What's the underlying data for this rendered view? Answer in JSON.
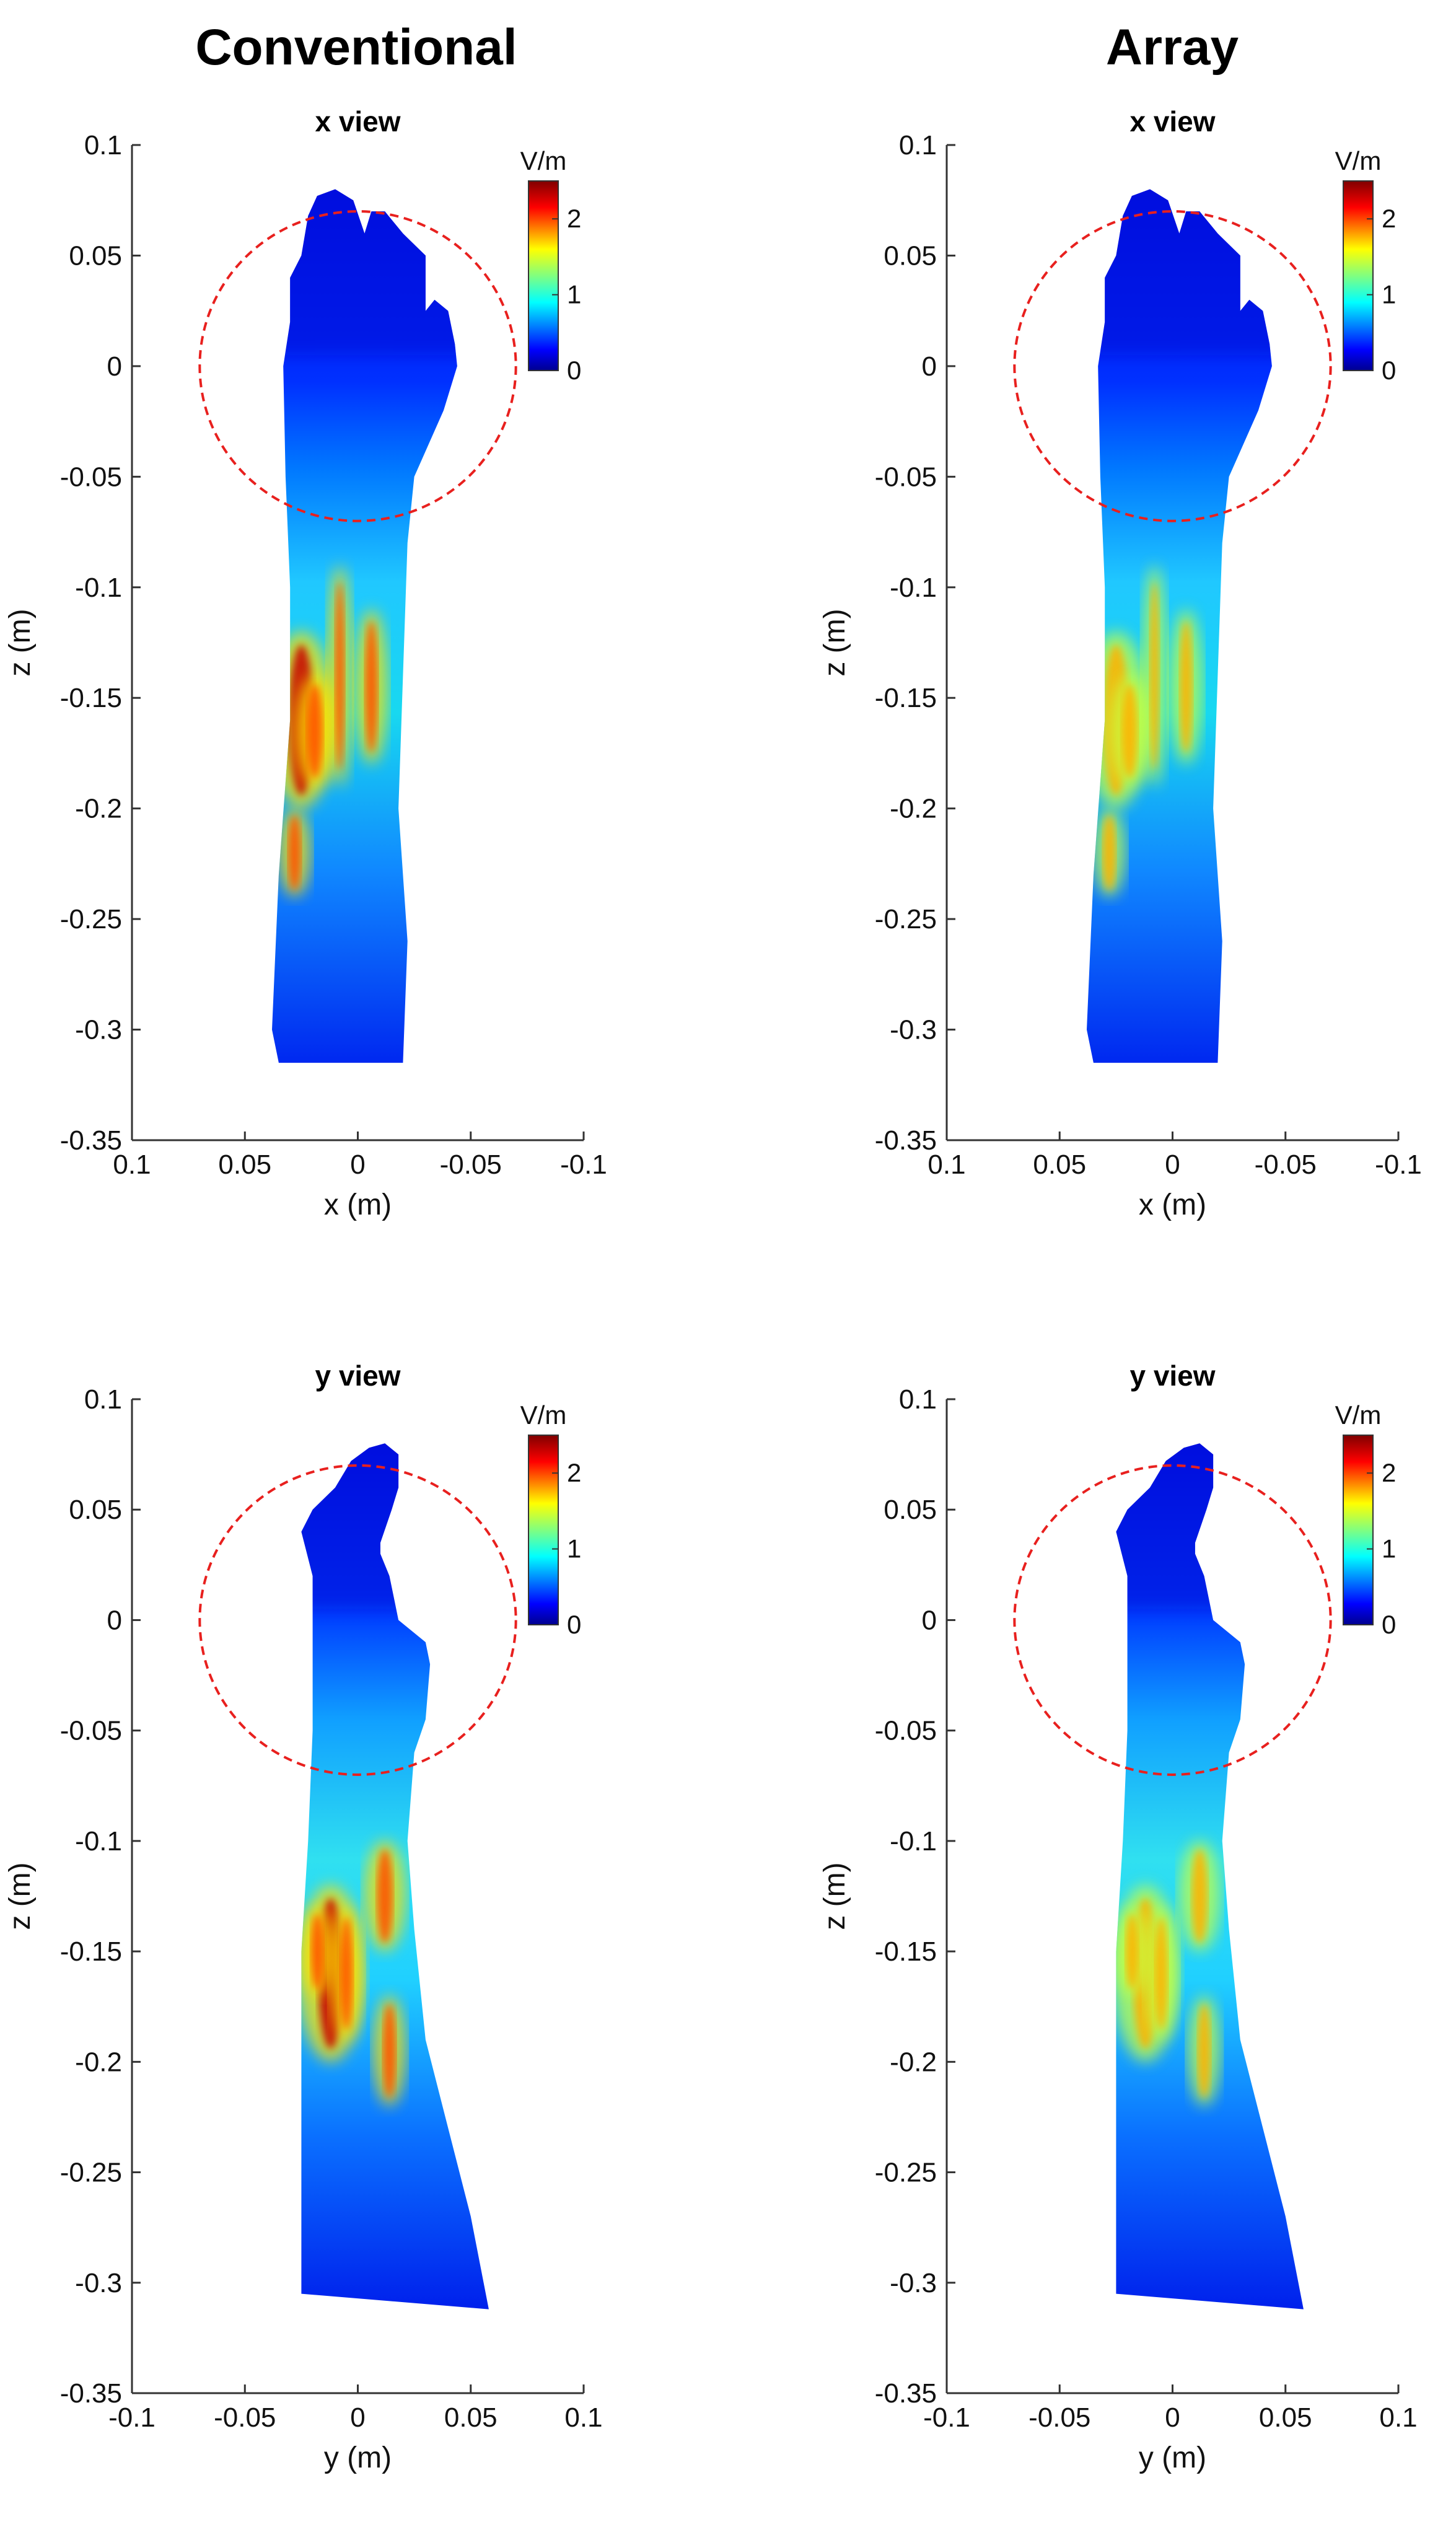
{
  "figure": {
    "column_titles": [
      "Conventional",
      "Array"
    ]
  },
  "colors": {
    "circle": "#e8201e",
    "colormap": [
      "#00008f",
      "#0000ff",
      "#0080ff",
      "#00ffff",
      "#80ff80",
      "#ffff00",
      "#ff8000",
      "#ff0000",
      "#800000"
    ]
  },
  "chart_data": [
    {
      "type": "heatmap",
      "column": "Conventional",
      "title": "x view",
      "xlabel": "x (m)",
      "ylabel": "z (m)",
      "xlim": [
        0.1,
        -0.1
      ],
      "x_reversed": true,
      "ylim": [
        -0.35,
        0.1
      ],
      "xticks": [
        0.1,
        0.05,
        0,
        -0.05,
        -0.1
      ],
      "xtick_labels": [
        "0.1",
        "0.05",
        "0",
        "-0.05",
        "-0.1"
      ],
      "yticks": [
        0.1,
        0.05,
        0,
        -0.05,
        -0.1,
        -0.15,
        -0.2,
        -0.25,
        -0.3,
        -0.35
      ],
      "ytick_labels": [
        "0.1",
        "0.05",
        "0",
        "-0.05",
        "-0.1",
        "-0.15",
        "-0.2",
        "-0.25",
        "-0.3",
        "-0.35"
      ],
      "colorbar": {
        "label": "V/m",
        "range": [
          0,
          2.5
        ],
        "ticks": [
          0,
          1,
          2
        ],
        "tick_labels": [
          "0",
          "1",
          "2"
        ],
        "colormap": "jet"
      },
      "annotation_circle": {
        "center": [
          0,
          0
        ],
        "radius": 0.07,
        "style": "dashed",
        "color": "red"
      },
      "field_peak": 2.4,
      "hotspot_z_range": [
        -0.2,
        -0.1
      ]
    },
    {
      "type": "heatmap",
      "column": "Array",
      "title": "x view",
      "xlabel": "x (m)",
      "ylabel": "z (m)",
      "xlim": [
        0.1,
        -0.1
      ],
      "x_reversed": true,
      "ylim": [
        -0.35,
        0.1
      ],
      "xticks": [
        0.1,
        0.05,
        0,
        -0.05,
        -0.1
      ],
      "xtick_labels": [
        "0.1",
        "0.05",
        "0",
        "-0.05",
        "-0.1"
      ],
      "yticks": [
        0.1,
        0.05,
        0,
        -0.05,
        -0.1,
        -0.15,
        -0.2,
        -0.25,
        -0.3,
        -0.35
      ],
      "ytick_labels": [
        "0.1",
        "0.05",
        "0",
        "-0.05",
        "-0.1",
        "-0.15",
        "-0.2",
        "-0.25",
        "-0.3",
        "-0.35"
      ],
      "colorbar": {
        "label": "V/m",
        "range": [
          0,
          2.5
        ],
        "ticks": [
          0,
          1,
          2
        ],
        "tick_labels": [
          "0",
          "1",
          "2"
        ],
        "colormap": "jet"
      },
      "annotation_circle": {
        "center": [
          0,
          0
        ],
        "radius": 0.07,
        "style": "dashed",
        "color": "red"
      },
      "field_peak": 1.8,
      "hotspot_z_range": [
        -0.2,
        -0.1
      ]
    },
    {
      "type": "heatmap",
      "column": "Conventional",
      "title": "y view",
      "xlabel": "y (m)",
      "ylabel": "z (m)",
      "xlim": [
        -0.1,
        0.1
      ],
      "x_reversed": false,
      "ylim": [
        -0.35,
        0.1
      ],
      "xticks": [
        -0.1,
        -0.05,
        0,
        0.05,
        0.1
      ],
      "xtick_labels": [
        "-0.1",
        "-0.05",
        "0",
        "0.05",
        "0.1"
      ],
      "yticks": [
        0.1,
        0.05,
        0,
        -0.05,
        -0.1,
        -0.15,
        -0.2,
        -0.25,
        -0.3,
        -0.35
      ],
      "ytick_labels": [
        "0.1",
        "0.05",
        "0",
        "-0.05",
        "-0.1",
        "-0.15",
        "-0.2",
        "-0.25",
        "-0.3",
        "-0.35"
      ],
      "colorbar": {
        "label": "V/m",
        "range": [
          0,
          2.5
        ],
        "ticks": [
          0,
          1,
          2
        ],
        "tick_labels": [
          "0",
          "1",
          "2"
        ],
        "colormap": "jet"
      },
      "annotation_circle": {
        "center": [
          0,
          0
        ],
        "radius": 0.07,
        "style": "dashed",
        "color": "red"
      },
      "field_peak": 2.4,
      "hotspot_z_range": [
        -0.2,
        -0.1
      ]
    },
    {
      "type": "heatmap",
      "column": "Array",
      "title": "y view",
      "xlabel": "y (m)",
      "ylabel": "z (m)",
      "xlim": [
        -0.1,
        0.1
      ],
      "x_reversed": false,
      "ylim": [
        -0.35,
        0.1
      ],
      "xticks": [
        -0.1,
        -0.05,
        0,
        0.05,
        0.1
      ],
      "xtick_labels": [
        "-0.1",
        "-0.05",
        "0",
        "0.05",
        "0.1"
      ],
      "yticks": [
        0.1,
        0.05,
        0,
        -0.05,
        -0.1,
        -0.15,
        -0.2,
        -0.25,
        -0.3,
        -0.35
      ],
      "ytick_labels": [
        "0.1",
        "0.05",
        "0",
        "-0.05",
        "-0.1",
        "-0.15",
        "-0.2",
        "-0.25",
        "-0.3",
        "-0.35"
      ],
      "colorbar": {
        "label": "V/m",
        "range": [
          0,
          2.5
        ],
        "ticks": [
          0,
          1,
          2
        ],
        "tick_labels": [
          "0",
          "1",
          "2"
        ],
        "colormap": "jet"
      },
      "annotation_circle": {
        "center": [
          0,
          0
        ],
        "radius": 0.07,
        "style": "dashed",
        "color": "red"
      },
      "field_peak": 1.8,
      "hotspot_z_range": [
        -0.2,
        -0.1
      ]
    }
  ]
}
